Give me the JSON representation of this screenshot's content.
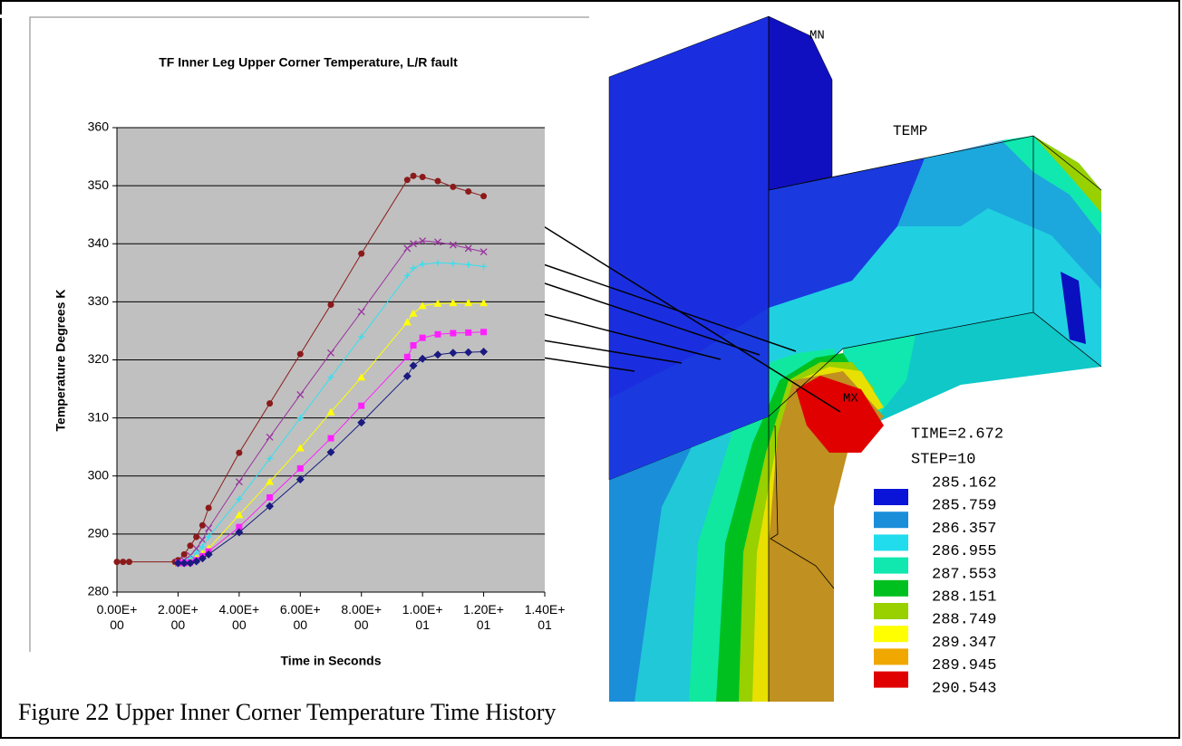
{
  "chart_data": {
    "type": "line",
    "title": "TF Inner Leg Upper Corner Temperature, L/R fault",
    "x_label": "Time in Seconds",
    "y_label": "Temperature Degrees K",
    "x": [
      0,
      0.2,
      0.4,
      1.9,
      2.0,
      2.2,
      2.4,
      2.6,
      2.8,
      3.0,
      4.0,
      5.0,
      6.0,
      7.0,
      8.0,
      9.5,
      9.7,
      10.0,
      10.5,
      11.0,
      11.5,
      12.0
    ],
    "series": [
      {
        "color": "#8b1a1a",
        "marker": "circle",
        "values": [
          285.2,
          285.2,
          285.2,
          285.2,
          285.5,
          286.5,
          288,
          289.5,
          291.5,
          294.5,
          304,
          312.5,
          321,
          329.5,
          338.3,
          351,
          351.7,
          351.5,
          350.8,
          349.8,
          349,
          348.2
        ]
      },
      {
        "color": "#9932a0",
        "marker": "x",
        "values": [
          null,
          null,
          null,
          null,
          285.2,
          285.5,
          286.3,
          287.5,
          289,
          291,
          299,
          306.7,
          314,
          321.2,
          328.3,
          339.2,
          340,
          340.5,
          340.3,
          339.8,
          339.2,
          338.6
        ]
      },
      {
        "color": "#33e0f0",
        "marker": "plus",
        "values": [
          null,
          null,
          null,
          null,
          285,
          285.2,
          285.8,
          286.7,
          287.8,
          289.5,
          296,
          303,
          310,
          317,
          324,
          334.5,
          335.8,
          336.5,
          336.7,
          336.6,
          336.4,
          336.1
        ]
      },
      {
        "color": "#ffff00",
        "marker": "triangle",
        "values": [
          null,
          null,
          null,
          null,
          285,
          285,
          285.2,
          285.8,
          286.6,
          287.5,
          293.3,
          299,
          304.8,
          311,
          317,
          326.5,
          328,
          329.3,
          329.7,
          329.8,
          329.8,
          329.8
        ]
      },
      {
        "color": "#ff20ff",
        "marker": "square",
        "values": [
          null,
          null,
          null,
          null,
          285,
          285,
          285.1,
          285.5,
          286.2,
          287,
          291.2,
          296.3,
          301.3,
          306.5,
          312.1,
          320.5,
          322.5,
          323.8,
          324.4,
          324.6,
          324.7,
          324.8
        ]
      },
      {
        "color": "#1a1a80",
        "marker": "diamond",
        "values": [
          null,
          null,
          null,
          null,
          285,
          285,
          285,
          285.3,
          285.8,
          286.5,
          290.3,
          294.8,
          299.4,
          304.1,
          309.2,
          317.2,
          319,
          320.2,
          320.9,
          321.2,
          321.3,
          321.4
        ]
      }
    ],
    "xlim": [
      0,
      14
    ],
    "ylim": [
      280,
      360
    ],
    "xticks": [
      {
        "value": 0,
        "label": "0.00E+00"
      },
      {
        "value": 2,
        "label": "2.00E+00"
      },
      {
        "value": 4,
        "label": "4.00E+00"
      },
      {
        "value": 6,
        "label": "6.00E+00"
      },
      {
        "value": 8,
        "label": "8.00E+00"
      },
      {
        "value": 10,
        "label": "1.00E+01"
      },
      {
        "value": 12,
        "label": "1.20E+01"
      },
      {
        "value": 14,
        "label": "1.40E+01"
      }
    ],
    "yticks": [
      280,
      290,
      300,
      310,
      320,
      330,
      340,
      350,
      360
    ],
    "grid": true,
    "plot_background": "#c0c0c0"
  },
  "contour_plot": {
    "min_label": "MN",
    "quantity": "TEMP",
    "max_label": "MX",
    "time": "TIME=2.672",
    "step": "STEP=10",
    "levels": [
      285.162,
      285.759,
      286.357,
      286.955,
      287.553,
      288.151,
      288.749,
      289.347,
      289.945,
      290.543
    ],
    "colors": [
      "#0a14d8",
      "#1a8ed8",
      "#20dcec",
      "#10e8b0",
      "#00c020",
      "#98d000",
      "#ffff00",
      "#f0a800",
      "#e00000"
    ]
  },
  "caption": "Figure 22 Upper Inner Corner Temperature Time History"
}
